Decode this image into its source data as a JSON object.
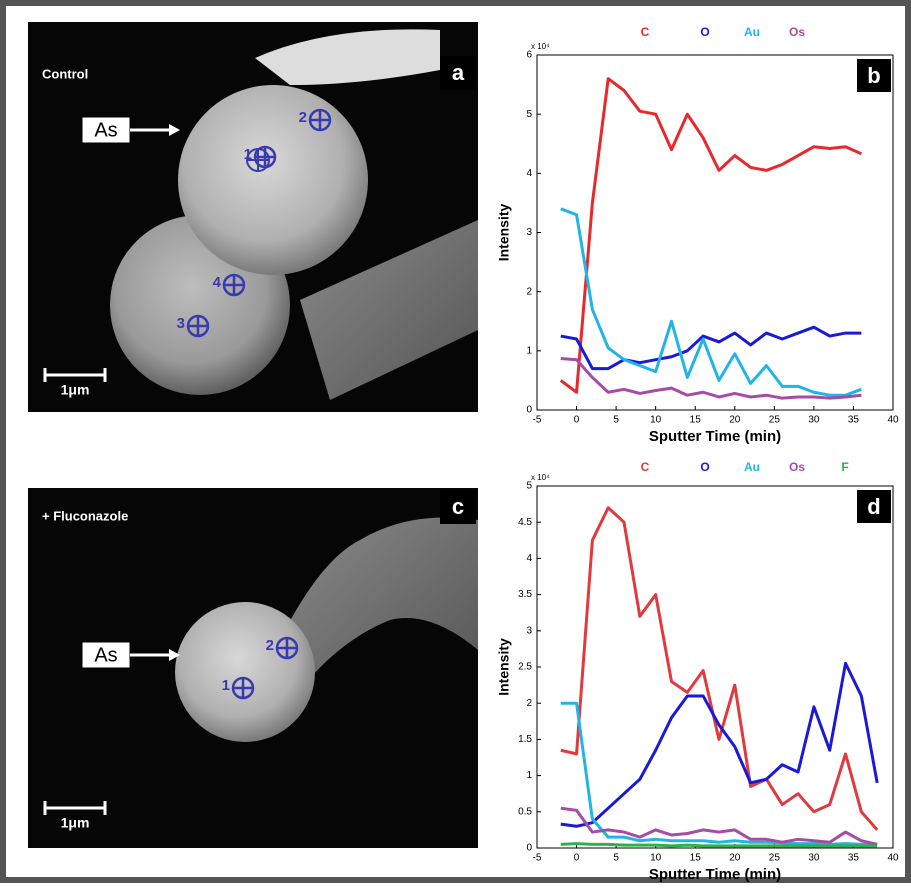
{
  "chart_data": [
    {
      "type": "line",
      "panel_label": "b",
      "y_multiplier": "x 10⁴",
      "xlabel": "Sputter Time (min)",
      "ylabel": "Intensity",
      "x": [
        -2,
        0,
        2,
        4,
        6,
        8,
        10,
        12,
        14,
        16,
        18,
        20,
        22,
        24,
        26,
        28,
        30,
        32,
        34,
        36
      ],
      "series": [
        {
          "name": "C",
          "color": "#e8282b",
          "values": [
            0.5,
            0.3,
            3.5,
            5.6,
            5.4,
            5.05,
            5.0,
            4.4,
            5.0,
            4.6,
            4.05,
            4.3,
            4.1,
            4.05,
            4.15,
            4.3,
            4.45,
            4.42,
            4.45,
            4.33
          ]
        },
        {
          "name": "O",
          "color": "#1a1ad6",
          "values": [
            1.25,
            1.2,
            0.7,
            0.7,
            0.85,
            0.8,
            0.85,
            0.9,
            1.0,
            1.25,
            1.15,
            1.3,
            1.1,
            1.3,
            1.2,
            1.3,
            1.4,
            1.25,
            1.3,
            1.3
          ]
        },
        {
          "name": "Au",
          "color": "#22b4e6",
          "values": [
            3.4,
            3.3,
            1.7,
            1.05,
            0.85,
            0.75,
            0.65,
            1.5,
            0.55,
            1.2,
            0.5,
            0.95,
            0.45,
            0.75,
            0.4,
            0.4,
            0.3,
            0.25,
            0.25,
            0.35
          ]
        },
        {
          "name": "Os",
          "color": "#a64ca6",
          "values": [
            0.87,
            0.85,
            0.55,
            0.3,
            0.35,
            0.28,
            0.33,
            0.37,
            0.25,
            0.3,
            0.22,
            0.28,
            0.22,
            0.25,
            0.2,
            0.22,
            0.22,
            0.2,
            0.22,
            0.25
          ]
        }
      ],
      "xlim": [
        -5,
        40
      ],
      "ylim": [
        0,
        6
      ],
      "xticks": [
        -5,
        0,
        5,
        10,
        15,
        20,
        25,
        30,
        35,
        40
      ],
      "yticks": [
        0,
        1,
        2,
        3,
        4,
        5,
        6
      ]
    },
    {
      "type": "line",
      "panel_label": "d",
      "y_multiplier": "x 10⁴",
      "xlabel": "Sputter Time (min)",
      "ylabel": "Intensity",
      "x": [
        -2,
        0,
        2,
        4,
        6,
        8,
        10,
        12,
        14,
        16,
        18,
        20,
        22,
        24,
        26,
        28,
        30,
        32,
        34,
        36,
        38
      ],
      "series": [
        {
          "name": "C",
          "color": "#e03a3e",
          "values": [
            1.35,
            1.3,
            4.25,
            4.7,
            4.5,
            3.2,
            3.5,
            2.3,
            2.15,
            2.45,
            1.5,
            2.25,
            0.85,
            0.95,
            0.6,
            0.75,
            0.5,
            0.6,
            1.3,
            0.5,
            0.25
          ]
        },
        {
          "name": "O",
          "color": "#1a1ad6",
          "values": [
            0.33,
            0.3,
            0.35,
            0.55,
            0.75,
            0.95,
            1.35,
            1.8,
            2.1,
            2.1,
            1.7,
            1.4,
            0.9,
            0.95,
            1.15,
            1.05,
            1.95,
            1.35,
            2.55,
            2.1,
            0.9
          ]
        },
        {
          "name": "Au",
          "color": "#22b4e6",
          "values": [
            2.0,
            2.0,
            0.4,
            0.15,
            0.15,
            0.1,
            0.12,
            0.1,
            0.1,
            0.1,
            0.08,
            0.1,
            0.08,
            0.08,
            0.07,
            0.06,
            0.06,
            0.05,
            0.06,
            0.05,
            0.05
          ]
        },
        {
          "name": "Os",
          "color": "#a64ca6",
          "values": [
            0.55,
            0.52,
            0.22,
            0.25,
            0.22,
            0.15,
            0.25,
            0.18,
            0.2,
            0.25,
            0.22,
            0.25,
            0.12,
            0.12,
            0.08,
            0.12,
            0.1,
            0.08,
            0.22,
            0.1,
            0.05
          ]
        },
        {
          "name": "F",
          "color": "#2fb04a",
          "values": [
            0.05,
            0.06,
            0.05,
            0.05,
            0.04,
            0.04,
            0.04,
            0.03,
            0.04,
            0.03,
            0.03,
            0.03,
            0.03,
            0.03,
            0.03,
            0.03,
            0.03,
            0.03,
            0.03,
            0.03,
            0.03
          ]
        }
      ],
      "xlim": [
        -5,
        40
      ],
      "ylim": [
        0,
        5
      ],
      "xticks": [
        -5,
        0,
        5,
        10,
        15,
        20,
        25,
        30,
        35,
        40
      ],
      "yticks": [
        0,
        0.5,
        1,
        1.5,
        2,
        2.5,
        3,
        3.5,
        4,
        4.5,
        5
      ]
    }
  ],
  "images": [
    {
      "panel_label": "a",
      "caption": "Control",
      "pointer": "As",
      "points": [
        "1",
        "2",
        "3",
        "4"
      ],
      "scale_bar": "1μm"
    },
    {
      "panel_label": "c",
      "caption": "+ Fluconazole",
      "pointer": "As",
      "points": [
        "1",
        "2"
      ],
      "scale_bar": "1μm"
    }
  ]
}
